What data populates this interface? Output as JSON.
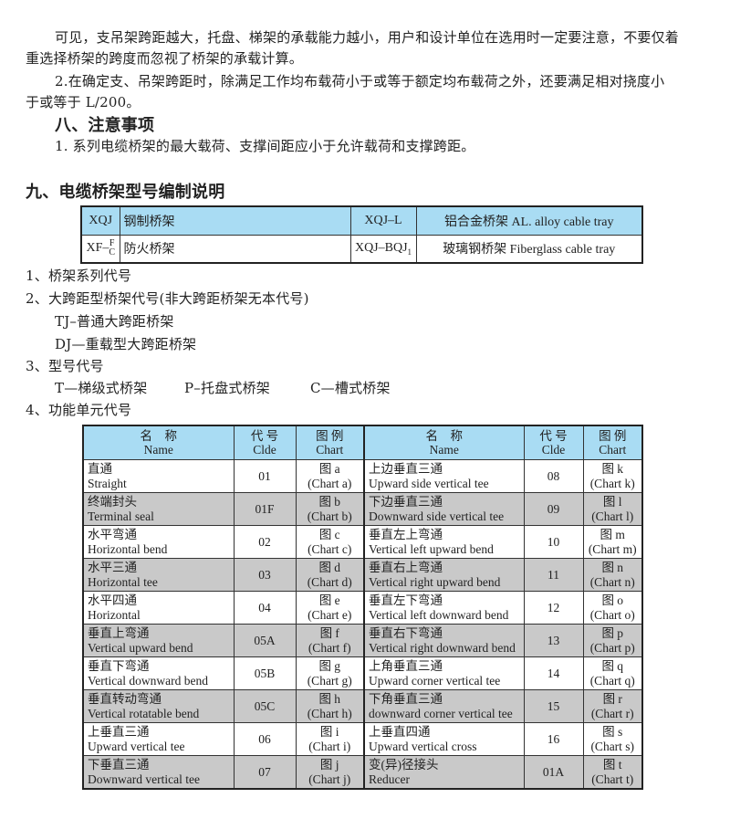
{
  "paragraphs": [
    "可见，支吊架跨距越大，托盘、梯架的承载能力越小，用户和设计单位在选用时一定要注意，不要仅着",
    "重选择桥架的跨度而忽视了桥架的承载计算。",
    "2.在确定支、吊架跨距时，除满足工作均布载荷小于或等于额定均布载荷之外，还要满足相对挠度小",
    "于或等于 L/200。"
  ],
  "section8": {
    "heading": "八、注意事项",
    "item1": "1. 系列电缆桥架的最大载荷、支撑间距应小于允许载荷和支撑跨距。"
  },
  "section9": {
    "heading": "九、电缆桥架型号编制说明"
  },
  "code_table": {
    "r1": {
      "c1": "XQJ",
      "c2": "钢制桥架",
      "c3": "XQJ–L",
      "c4": "铝合金桥架 AL. alloy cable tray"
    },
    "r2": {
      "c1": "XF–",
      "c1_top": "F",
      "c1_bottom": "C",
      "c2": "防火桥架",
      "c3": "XQJ–BQJ",
      "c3_sub": "1",
      "c4": "玻璃钢桥架 Fiberglass cable tray"
    }
  },
  "list": [
    "1、桥架系列代号",
    "2、大跨距型桥架代号(非大跨距桥架无本代号)",
    "TJ–普通大跨距桥架",
    "DJ—重载型大跨距桥架",
    "3、型号代号",
    "T—梯级式桥架",
    "P–托盘式桥架",
    "C—槽式桥架",
    "4、功能单元代号"
  ],
  "parts_table": {
    "headers": {
      "name_cn": "名　称",
      "name_en": "Name",
      "code_cn": "代 号",
      "code_en": "Clde",
      "chart_cn": "图 例",
      "chart_en": "Chart"
    },
    "rows": [
      {
        "l": {
          "cn": "直通",
          "en": "Straight",
          "code": "01",
          "fig": "图 a",
          "chart": "(Chart a)"
        },
        "r": {
          "cn": "上边垂直三通",
          "en": "Upward side vertical tee",
          "code": "08",
          "fig": "图 k",
          "chart": "(Chart k)"
        }
      },
      {
        "l": {
          "cn": "终端封头",
          "en": "Terminal seal",
          "code": "01F",
          "fig": "图 b",
          "chart": "(Chart b)"
        },
        "r": {
          "cn": "下边垂直三通",
          "en": "Downward side vertical tee",
          "code": "09",
          "fig": "图 l",
          "chart": "(Chart l)"
        }
      },
      {
        "l": {
          "cn": "水平弯通",
          "en": "Horizontal bend",
          "code": "02",
          "fig": "图 c",
          "chart": "(Chart c)"
        },
        "r": {
          "cn": "垂直左上弯通",
          "en": "Vertical left upward bend",
          "code": "10",
          "fig": "图 m",
          "chart": "(Chart m)"
        }
      },
      {
        "l": {
          "cn": "水平三通",
          "en": "Horizontal tee",
          "code": "03",
          "fig": "图 d",
          "chart": "(Chart d)"
        },
        "r": {
          "cn": "垂直右上弯通",
          "en": "Vertical right upward bend",
          "code": "11",
          "fig": "图 n",
          "chart": "(Chart n)"
        }
      },
      {
        "l": {
          "cn": "水平四通",
          "en": "Horizontal",
          "code": "04",
          "fig": "图 e",
          "chart": "(Chart e)"
        },
        "r": {
          "cn": "垂直左下弯通",
          "en": "Vertical left downward bend",
          "code": "12",
          "fig": "图 o",
          "chart": "(Chart o)"
        }
      },
      {
        "l": {
          "cn": "垂直上弯通",
          "en": "Vertical upward bend",
          "code": "05A",
          "fig": "图 f",
          "chart": "(Chart f)"
        },
        "r": {
          "cn": "垂直右下弯通",
          "en": "Vertical right downward bend",
          "code": "13",
          "fig": "图 p",
          "chart": "(Chart p)"
        }
      },
      {
        "l": {
          "cn": "垂直下弯通",
          "en": "Vertical downward bend",
          "code": "05B",
          "fig": "图 g",
          "chart": "(Chart g)"
        },
        "r": {
          "cn": "上角垂直三通",
          "en": "Upward corner vertical tee",
          "code": "14",
          "fig": "图 q",
          "chart": "(Chart q)"
        }
      },
      {
        "l": {
          "cn": "垂直转动弯通",
          "en": "Vertical rotatable bend",
          "code": "05C",
          "fig": "图 h",
          "chart": "(Chart h)"
        },
        "r": {
          "cn": "下角垂直三通",
          "en": "downward corner vertical tee",
          "code": "15",
          "fig": "图 r",
          "chart": "(Chart r)"
        }
      },
      {
        "l": {
          "cn": "上垂直三通",
          "en": "Upward vertical tee",
          "code": "06",
          "fig": "图 i",
          "chart": "(Chart i)"
        },
        "r": {
          "cn": "上垂直四通",
          "en": "Upward vertical cross",
          "code": "16",
          "fig": "图 s",
          "chart": "(Chart s)"
        }
      },
      {
        "l": {
          "cn": "下垂直三通",
          "en": "Downward vertical tee",
          "code": "07",
          "fig": "图 j",
          "chart": "(Chart j)"
        },
        "r": {
          "cn": "变(异)径接头",
          "en": "Reducer",
          "code": "01A",
          "fig": "图 t",
          "chart": "(Chart t)"
        }
      }
    ]
  },
  "colors": {
    "header_blue": "#a9dcf3",
    "row_gray": "#c9c9c9"
  }
}
